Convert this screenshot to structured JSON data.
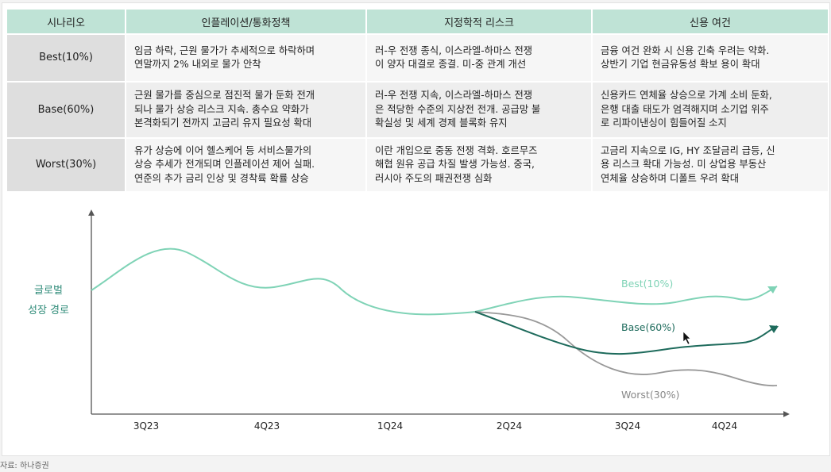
{
  "table": {
    "headers": [
      "시나리오",
      "인플레이션/통화정책",
      "지정학적 리스크",
      "신용 여건"
    ],
    "rows": [
      {
        "scenario": "Best(10%)",
        "inflation": [
          "임금 하락, 근원 물가가 추세적으로 하락하며",
          "연말까지 2% 내외로 물가 안착"
        ],
        "geopolitics": [
          "러-우 전쟁 종식, 이스라엘-하마스 전쟁",
          "이 양자 대결로 종결. 미-중 관계 개선"
        ],
        "credit": [
          "금융 여건 완화 시 신용 긴축 우려는 약화.",
          "상반기 기업 현금유동성 확보 용이 확대"
        ]
      },
      {
        "scenario": "Base(60%)",
        "inflation": [
          "근원 물가를 중심으로 점진적 물가 둔화 전개",
          "되나 물가 상승 리스크 지속. 총수요 약화가",
          "본격화되기 전까지 고금리 유지 필요성 확대"
        ],
        "geopolitics": [
          "러-우 전쟁 지속, 이스라엘-하마스 전쟁",
          "은 적당한 수준의 지상전 전개. 공급망 불",
          "확실성 및 세계 경제 블록화 유지"
        ],
        "credit": [
          "신용카드 연체율 상승으로 가계 소비 둔화,",
          "은행 대출 태도가 엄격해지며 소기업 위주",
          "로 리파이낸싱이 힘들어질 소지"
        ]
      },
      {
        "scenario": "Worst(30%)",
        "inflation": [
          "유가 상승에 이어 헬스케어 등 서비스물가의",
          "상승 추세가 전개되며 인플레이션 제어 실패.",
          "연준의 추가 금리 인상 및 경착륙 확률 상승"
        ],
        "geopolitics": [
          "이란 개입으로 중동 전쟁 격화. 호르무즈",
          "해협 원유 공급 차질 발생 가능성. 중국,",
          "러시아 주도의 패권전쟁 심화"
        ],
        "credit": [
          "고금리 지속으로 IG, HY 조달금리 급등, 신",
          "용 리스크 확대 가능성. 미 상업용 부동산",
          "연체율 상승하며 디폴트 우려 확대"
        ]
      }
    ]
  },
  "chart_data": {
    "type": "line",
    "ylabel": [
      "글로벌",
      "성장 경로"
    ],
    "x_ticks": [
      "3Q23",
      "4Q23",
      "1Q24",
      "2Q24",
      "3Q24",
      "4Q24"
    ],
    "series": [
      {
        "name": "Best(10%)",
        "color": "#7fd3b6"
      },
      {
        "name": "Base(60%)",
        "color": "#1e6b5c"
      },
      {
        "name": "Worst(30%)",
        "color": "#999999"
      }
    ],
    "history_color": "#7fd3b6"
  },
  "source": "자료: 하나증권"
}
